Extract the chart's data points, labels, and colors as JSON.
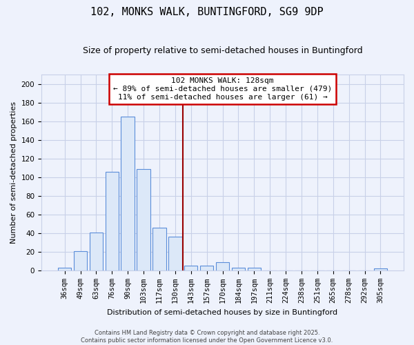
{
  "title": "102, MONKS WALK, BUNTINGFORD, SG9 9DP",
  "subtitle": "Size of property relative to semi-detached houses in Buntingford",
  "xlabel": "Distribution of semi-detached houses by size in Buntingford",
  "ylabel": "Number of semi-detached properties",
  "bar_labels": [
    "36sqm",
    "49sqm",
    "63sqm",
    "76sqm",
    "90sqm",
    "103sqm",
    "117sqm",
    "130sqm",
    "143sqm",
    "157sqm",
    "170sqm",
    "184sqm",
    "197sqm",
    "211sqm",
    "224sqm",
    "238sqm",
    "251sqm",
    "265sqm",
    "278sqm",
    "292sqm",
    "305sqm"
  ],
  "bar_values": [
    3,
    21,
    41,
    106,
    165,
    109,
    46,
    36,
    5,
    5,
    9,
    3,
    3,
    0,
    0,
    0,
    0,
    0,
    0,
    0,
    2
  ],
  "bar_color": "#dce8f8",
  "bar_edge_color": "#5b8dd9",
  "vline_x": 7.5,
  "vline_color": "#990000",
  "annotation_title": "102 MONKS WALK: 128sqm",
  "annotation_line1": "← 89% of semi-detached houses are smaller (479)",
  "annotation_line2": "11% of semi-detached houses are larger (61) →",
  "annotation_box_color": "#ffffff",
  "annotation_box_edge": "#cc0000",
  "ylim": [
    0,
    210
  ],
  "yticks": [
    0,
    20,
    40,
    60,
    80,
    100,
    120,
    140,
    160,
    180,
    200
  ],
  "footer_line1": "Contains HM Land Registry data © Crown copyright and database right 2025.",
  "footer_line2": "Contains public sector information licensed under the Open Government Licence v3.0.",
  "bg_color": "#eef2fc",
  "grid_color": "#c8d0e8",
  "title_fontsize": 11,
  "subtitle_fontsize": 9,
  "xlabel_fontsize": 8,
  "ylabel_fontsize": 8,
  "tick_fontsize": 7.5,
  "annotation_fontsize": 8
}
